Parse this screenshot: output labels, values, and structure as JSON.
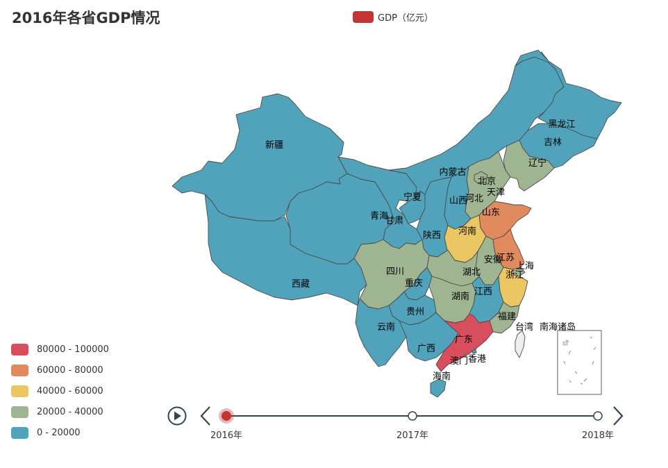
{
  "title": "2016年各省GDP情况",
  "legend": {
    "label": "GDP（亿元）",
    "color": "#c23531"
  },
  "visual_map": [
    {
      "label": "80000 - 100000",
      "color": "#d94e5d"
    },
    {
      "label": "60000 - 80000",
      "color": "#e08a5e"
    },
    {
      "label": "40000 - 60000",
      "color": "#eac763"
    },
    {
      "label": "20000 - 40000",
      "color": "#9fb591"
    },
    {
      "label": "0 - 20000",
      "color": "#50a3ba"
    }
  ],
  "timeline": {
    "ticks": [
      "2016年",
      "2017年",
      "2018年"
    ],
    "current": "2016年"
  },
  "chart_data": {
    "type": "map",
    "title": "2016年各省GDP情况",
    "series_name": "GDP（亿元）",
    "year": "2016年",
    "regions": [
      {
        "name": "新疆",
        "band": "0 - 20000"
      },
      {
        "name": "西藏",
        "band": "0 - 20000"
      },
      {
        "name": "青海",
        "band": "0 - 20000"
      },
      {
        "name": "甘肃",
        "band": "0 - 20000"
      },
      {
        "name": "宁夏",
        "band": "0 - 20000"
      },
      {
        "name": "内蒙古",
        "band": "0 - 20000"
      },
      {
        "name": "黑龙江",
        "band": "0 - 20000"
      },
      {
        "name": "吉林",
        "band": "0 - 20000"
      },
      {
        "name": "辽宁",
        "band": "20000 - 40000"
      },
      {
        "name": "北京",
        "band": "20000 - 40000"
      },
      {
        "name": "天津",
        "band": "0 - 20000"
      },
      {
        "name": "河北",
        "band": "20000 - 40000"
      },
      {
        "name": "山西",
        "band": "0 - 20000"
      },
      {
        "name": "陕西",
        "band": "0 - 20000"
      },
      {
        "name": "山东",
        "band": "60000 - 80000"
      },
      {
        "name": "河南",
        "band": "40000 - 60000"
      },
      {
        "name": "江苏",
        "band": "60000 - 80000"
      },
      {
        "name": "安徽",
        "band": "20000 - 40000"
      },
      {
        "name": "上海",
        "band": "20000 - 40000"
      },
      {
        "name": "浙江",
        "band": "40000 - 60000"
      },
      {
        "name": "湖北",
        "band": "20000 - 40000"
      },
      {
        "name": "四川",
        "band": "20000 - 40000"
      },
      {
        "name": "重庆",
        "band": "0 - 20000"
      },
      {
        "name": "湖南",
        "band": "20000 - 40000"
      },
      {
        "name": "江西",
        "band": "0 - 20000"
      },
      {
        "name": "福建",
        "band": "20000 - 40000"
      },
      {
        "name": "贵州",
        "band": "0 - 20000"
      },
      {
        "name": "云南",
        "band": "0 - 20000"
      },
      {
        "name": "广西",
        "band": "0 - 20000"
      },
      {
        "name": "广东",
        "band": "80000 - 100000"
      },
      {
        "name": "香港",
        "band": "0 - 20000"
      },
      {
        "name": "澳门",
        "band": "0 - 20000"
      },
      {
        "name": "海南",
        "band": "0 - 20000"
      },
      {
        "name": "台湾",
        "band": "no data"
      },
      {
        "name": "南海诸岛",
        "band": "no data"
      }
    ]
  }
}
